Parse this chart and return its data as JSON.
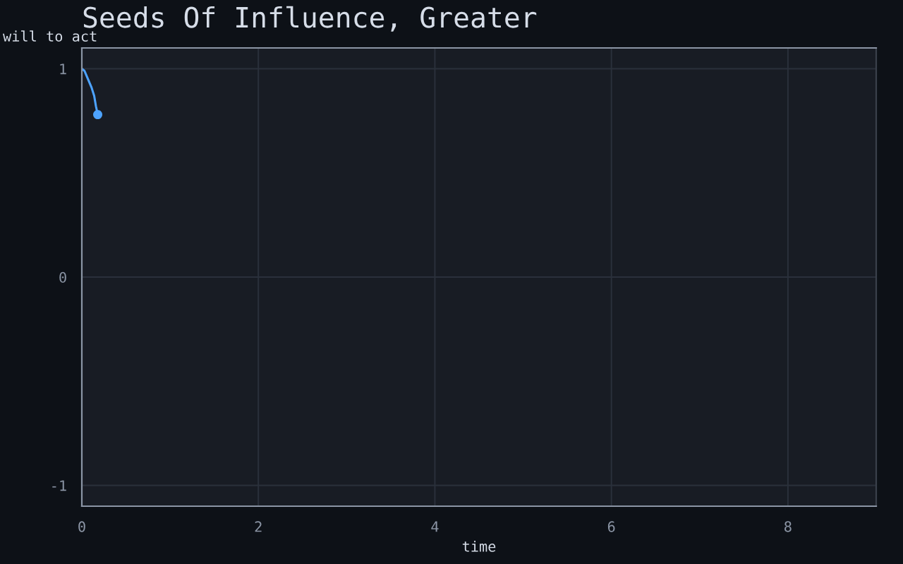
{
  "chart_data": {
    "type": "line",
    "title": "Seeds Of Influence, Greater",
    "xlabel": "time",
    "ylabel": "will to act",
    "series": [
      {
        "color": "#4da3ff",
        "x": [
          0,
          0.03,
          0.06,
          0.11,
          0.14,
          0.16,
          0.18
        ],
        "values": [
          1,
          0.99,
          0.96,
          0.91,
          0.87,
          0.82,
          0.78
        ],
        "marker": "none"
      },
      {
        "type": "scatter",
        "color": "#4da3ff",
        "x": [
          0.18
        ],
        "values": [
          0.78
        ],
        "marker": "circle"
      }
    ],
    "xlim": [
      0,
      9
    ],
    "xticks": [
      0,
      2,
      4,
      6,
      8
    ],
    "ylim": [
      -1.1,
      1.1
    ],
    "yticks": [
      -1,
      0,
      1
    ],
    "grid": true,
    "legend": false
  }
}
